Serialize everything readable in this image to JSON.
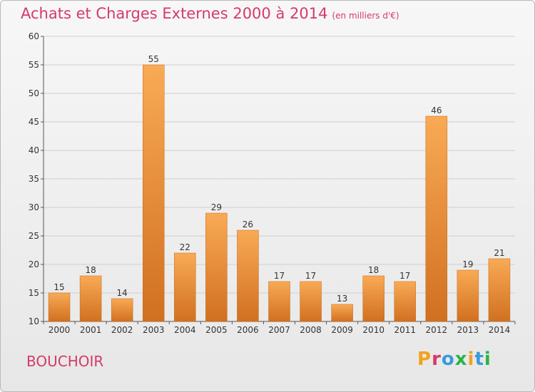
{
  "header": {
    "title": "Achats et Charges Externes 2000 à 2014",
    "subtitle": "(en milliers d'€)"
  },
  "footer": {
    "location": "BOUCHOIR",
    "logo_text": "Proxiti",
    "logo_colors": [
      "#f5a11c",
      "#d53a68",
      "#3a9ad9",
      "#2bb34a",
      "#f5a11c",
      "#3a9ad9",
      "#2bb34a"
    ]
  },
  "colors": {
    "bar_top": "#f9aa55",
    "bar_bottom": "#d07020",
    "bar_edge": "#c86a1e",
    "grid": "#cfcfcf",
    "axis": "#555555"
  },
  "chart_data": {
    "type": "bar",
    "title": "Achats et Charges Externes 2000 à 2014",
    "subtitle": "(en milliers d'€)",
    "xlabel": "",
    "ylabel": "",
    "categories": [
      "2000",
      "2001",
      "2002",
      "2003",
      "2004",
      "2005",
      "2006",
      "2007",
      "2008",
      "2009",
      "2010",
      "2011",
      "2012",
      "2013",
      "2014"
    ],
    "values": [
      15,
      18,
      14,
      55,
      22,
      29,
      26,
      17,
      17,
      13,
      18,
      17,
      46,
      19,
      21
    ],
    "ylim": [
      10,
      60
    ],
    "yticks": [
      10,
      15,
      20,
      25,
      30,
      35,
      40,
      45,
      50,
      55,
      60
    ],
    "grid": true,
    "legend": "none"
  }
}
